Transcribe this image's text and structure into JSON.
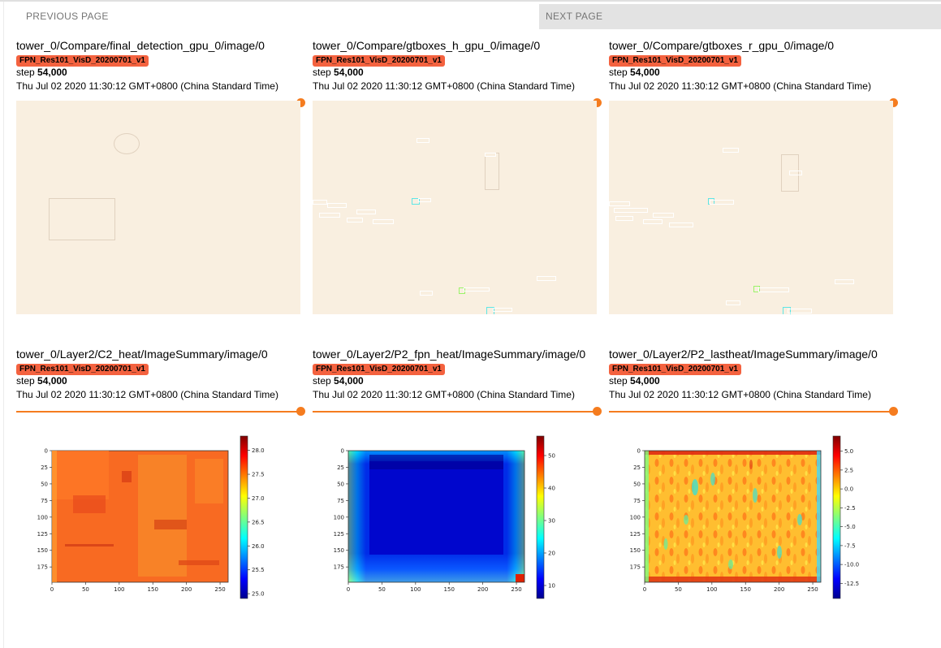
{
  "nav": {
    "previous_label": "PREVIOUS PAGE",
    "next_label": "NEXT PAGE"
  },
  "cards": [
    {
      "title": "tower_0/Compare/final_detection_gpu_0/image/0",
      "run": "FPN_Res101_VisD_20200701_v1",
      "step_prefix": "step",
      "step_value": "54,000",
      "timestamp": "Thu Jul 02 2020 11:30:12 GMT+0800 (China Standard Time)"
    },
    {
      "title": "tower_0/Compare/gtboxes_h_gpu_0/image/0",
      "run": "FPN_Res101_VisD_20200701_v1",
      "step_prefix": "step",
      "step_value": "54,000",
      "timestamp": "Thu Jul 02 2020 11:30:12 GMT+0800 (China Standard Time)"
    },
    {
      "title": "tower_0/Compare/gtboxes_r_gpu_0/image/0",
      "run": "FPN_Res101_VisD_20200701_v1",
      "step_prefix": "step",
      "step_value": "54,000",
      "timestamp": "Thu Jul 02 2020 11:30:12 GMT+0800 (China Standard Time)"
    },
    {
      "title": "tower_0/Layer2/C2_heat/ImageSummary/image/0",
      "run": "FPN_Res101_VisD_20200701_v1",
      "step_prefix": "step",
      "step_value": "54,000",
      "timestamp": "Thu Jul 02 2020 11:30:12 GMT+0800 (China Standard Time)"
    },
    {
      "title": "tower_0/Layer2/P2_fpn_heat/ImageSummary/image/0",
      "run": "FPN_Res101_VisD_20200701_v1",
      "step_prefix": "step",
      "step_value": "54,000",
      "timestamp": "Thu Jul 02 2020 11:30:12 GMT+0800 (China Standard Time)"
    },
    {
      "title": "tower_0/Layer2/P2_lastheat/ImageSummary/image/0",
      "run": "FPN_Res101_VisD_20200701_v1",
      "step_prefix": "step",
      "step_value": "54,000",
      "timestamp": "Thu Jul 02 2020 11:30:12 GMT+0800 (China Standard Time)"
    }
  ],
  "colors": {
    "run_badge": "#f4623f",
    "slider": "#f57c1f",
    "next_button_bg": "#e3e3e3"
  },
  "chart_data": [
    {
      "type": "heatmap",
      "name": "C2_heat",
      "x_ticks": [
        "0",
        "50",
        "100",
        "150",
        "200",
        "250"
      ],
      "y_ticks": [
        "0",
        "25",
        "50",
        "75",
        "100",
        "125",
        "150",
        "175"
      ],
      "colorbar_ticks": [
        "28.0",
        "27.5",
        "27.0",
        "26.5",
        "26.0",
        "25.5",
        "25.0"
      ],
      "colorbar_range": [
        24.9,
        28.3
      ],
      "colormap": "jet",
      "dominant_value": 27.8
    },
    {
      "type": "heatmap",
      "name": "P2_fpn_heat",
      "x_ticks": [
        "0",
        "50",
        "100",
        "150",
        "200",
        "250"
      ],
      "y_ticks": [
        "0",
        "25",
        "50",
        "75",
        "100",
        "125",
        "150",
        "175"
      ],
      "colorbar_ticks": [
        "50",
        "40",
        "30",
        "20",
        "10"
      ],
      "colorbar_range": [
        6,
        56
      ],
      "colormap": "jet",
      "dominant_value": 9
    },
    {
      "type": "heatmap",
      "name": "P2_lastheat",
      "x_ticks": [
        "0",
        "50",
        "100",
        "150",
        "200",
        "250"
      ],
      "y_ticks": [
        "0",
        "25",
        "50",
        "75",
        "100",
        "125",
        "150",
        "175"
      ],
      "colorbar_ticks": [
        "5.0",
        "2.5",
        "0.0",
        "-2.5",
        "-5.0",
        "-7.5",
        "-10.0",
        "-12.5"
      ],
      "colorbar_range": [
        -14.5,
        7.0
      ],
      "colormap": "jet",
      "dominant_value": 1.5
    }
  ]
}
